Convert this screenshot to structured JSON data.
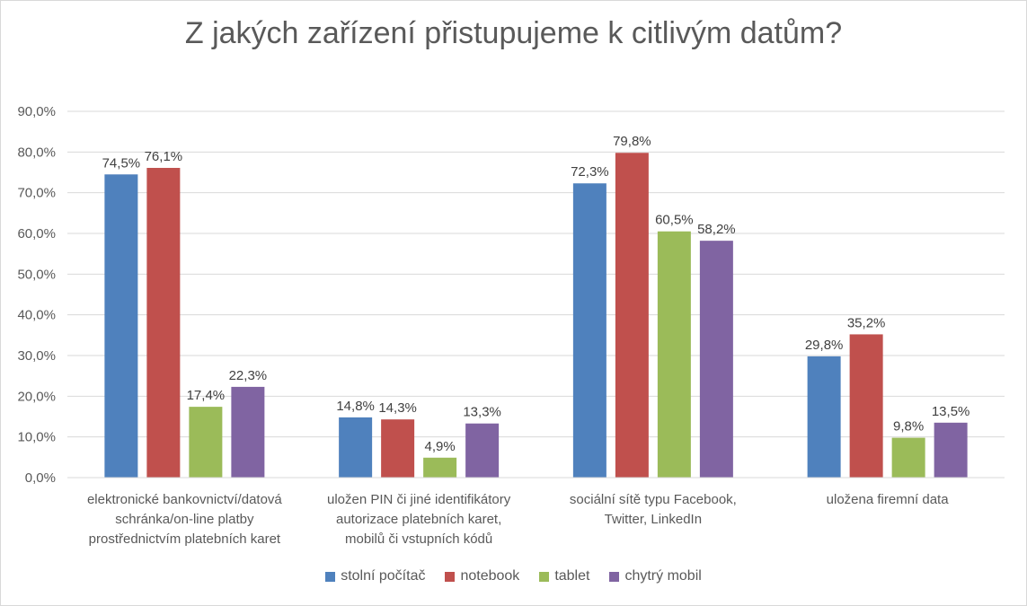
{
  "chart_data": {
    "type": "bar",
    "title": "Z jakých zařízení přistupujeme k citlivým datům?",
    "categories": [
      [
        "elektronické bankovnictví/datová",
        "schránka/on-line platby",
        "prostřednictvím platebních karet"
      ],
      [
        "uložen PIN či jiné identifikátory",
        "autorizace platebních karet,",
        "mobilů či vstupních kódů"
      ],
      [
        "sociální sítě typu Facebook,",
        "Twitter, LinkedIn"
      ],
      [
        "uložena firemní data"
      ]
    ],
    "series": [
      {
        "name": "stolní počítač",
        "color": "#4F81BD",
        "values": [
          74.5,
          14.8,
          72.3,
          29.8
        ],
        "labels": [
          "74,5%",
          "14,8%",
          "72,3%",
          "29,8%"
        ]
      },
      {
        "name": "notebook",
        "color": "#C0504D",
        "values": [
          76.1,
          14.3,
          79.8,
          35.2
        ],
        "labels": [
          "76,1%",
          "14,3%",
          "79,8%",
          "35,2%"
        ]
      },
      {
        "name": "tablet",
        "color": "#9BBB59",
        "values": [
          17.4,
          4.9,
          60.5,
          9.8
        ],
        "labels": [
          "17,4%",
          "4,9%",
          "60,5%",
          "9,8%"
        ]
      },
      {
        "name": "chytrý mobil",
        "color": "#8064A2",
        "values": [
          22.3,
          13.3,
          58.2,
          13.5
        ],
        "labels": [
          "22,3%",
          "13,3%",
          "58,2%",
          "13,5%"
        ]
      }
    ],
    "ylim": [
      0,
      90
    ],
    "yticks": [
      0,
      10,
      20,
      30,
      40,
      50,
      60,
      70,
      80,
      90
    ],
    "ytick_labels": [
      "0,0%",
      "10,0%",
      "20,0%",
      "30,0%",
      "40,0%",
      "50,0%",
      "60,0%",
      "70,0%",
      "80,0%",
      "90,0%"
    ],
    "grid": true,
    "legend_position": "bottom"
  }
}
